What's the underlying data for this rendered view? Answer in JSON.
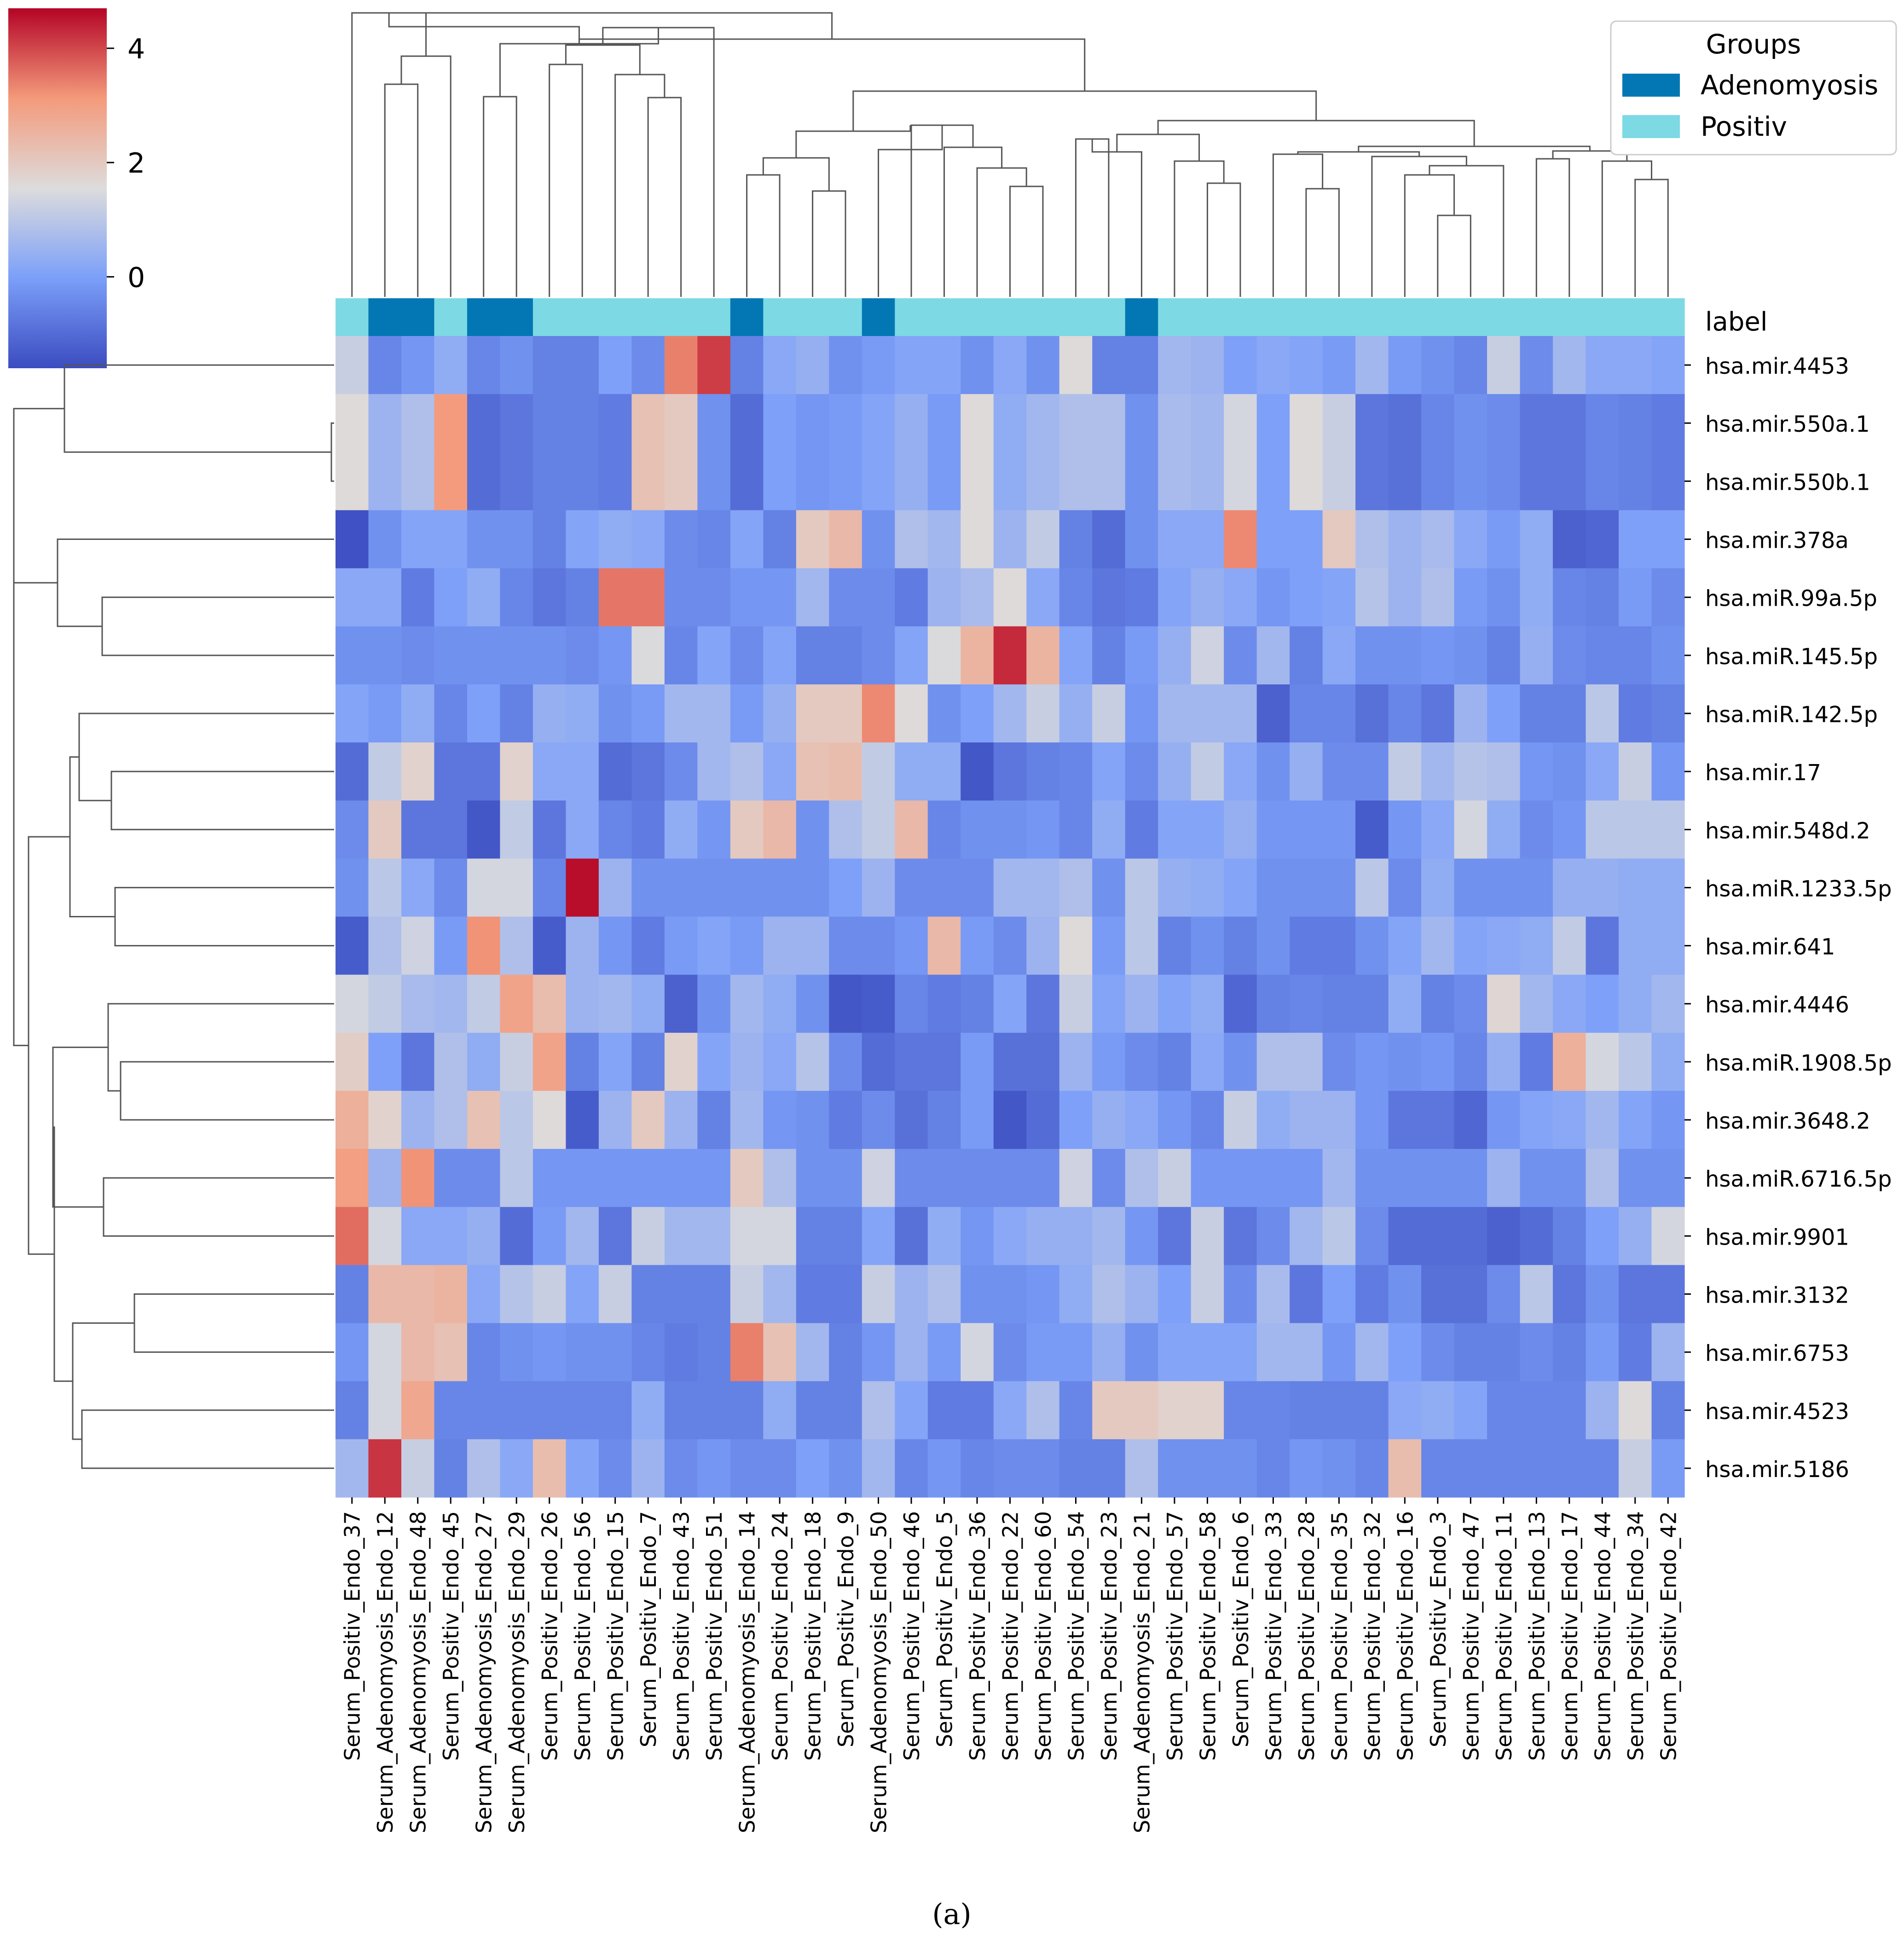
{
  "chart_data": {
    "type": "heatmap",
    "title": "",
    "caption": "(a)",
    "label_row_name": "label",
    "columns": [
      "Serum_Positiv_Endo_37",
      "Serum_Adenomyosis_Endo_12",
      "Serum_Adenomyosis_Endo_48",
      "Serum_Positiv_Endo_45",
      "Serum_Adenomyosis_Endo_27",
      "Serum_Adenomyosis_Endo_29",
      "Serum_Positiv_Endo_26",
      "Serum_Positiv_Endo_56",
      "Serum_Positiv_Endo_15",
      "Serum_Positiv_Endo_7",
      "Serum_Positiv_Endo_43",
      "Serum_Positiv_Endo_51",
      "Serum_Adenomyosis_Endo_14",
      "Serum_Positiv_Endo_24",
      "Serum_Positiv_Endo_18",
      "Serum_Positiv_Endo_9",
      "Serum_Adenomyosis_Endo_50",
      "Serum_Positiv_Endo_46",
      "Serum_Positiv_Endo_5",
      "Serum_Positiv_Endo_36",
      "Serum_Positiv_Endo_22",
      "Serum_Positiv_Endo_60",
      "Serum_Positiv_Endo_54",
      "Serum_Positiv_Endo_23",
      "Serum_Adenomyosis_Endo_21",
      "Serum_Positiv_Endo_57",
      "Serum_Positiv_Endo_58",
      "Serum_Positiv_Endo_6",
      "Serum_Positiv_Endo_33",
      "Serum_Positiv_Endo_28",
      "Serum_Positiv_Endo_35",
      "Serum_Positiv_Endo_32",
      "Serum_Positiv_Endo_16",
      "Serum_Positiv_Endo_3",
      "Serum_Positiv_Endo_47",
      "Serum_Positiv_Endo_11",
      "Serum_Positiv_Endo_13",
      "Serum_Positiv_Endo_17",
      "Serum_Positiv_Endo_44",
      "Serum_Positiv_Endo_34",
      "Serum_Positiv_Endo_42"
    ],
    "column_groups": [
      "Positiv",
      "Adenomyosis",
      "Adenomyosis",
      "Positiv",
      "Adenomyosis",
      "Adenomyosis",
      "Positiv",
      "Positiv",
      "Positiv",
      "Positiv",
      "Positiv",
      "Positiv",
      "Adenomyosis",
      "Positiv",
      "Positiv",
      "Positiv",
      "Adenomyosis",
      "Positiv",
      "Positiv",
      "Positiv",
      "Positiv",
      "Positiv",
      "Positiv",
      "Positiv",
      "Adenomyosis",
      "Positiv",
      "Positiv",
      "Positiv",
      "Positiv",
      "Positiv",
      "Positiv",
      "Positiv",
      "Positiv",
      "Positiv",
      "Positiv",
      "Positiv",
      "Positiv",
      "Positiv",
      "Positiv",
      "Positiv",
      "Positiv"
    ],
    "rows": [
      "hsa.mir.4453",
      "hsa.mir.550a.1",
      "hsa.mir.550b.1",
      "hsa.mir.378a",
      "hsa.miR.99a.5p",
      "hsa.miR.145.5p",
      "hsa.miR.142.5p",
      "hsa.mir.17",
      "hsa.mir.548d.2",
      "hsa.miR.1233.5p",
      "hsa.mir.641",
      "hsa.mir.4446",
      "hsa.miR.1908.5p",
      "hsa.mir.3648.2",
      "hsa.miR.6716.5p",
      "hsa.mir.9901",
      "hsa.mir.3132",
      "hsa.mir.6753",
      "hsa.mir.4523",
      "hsa.mir.5186"
    ],
    "values": [
      [
        1.2,
        -0.5,
        -0.2,
        0.3,
        -0.5,
        -0.3,
        -0.6,
        -0.6,
        0.0,
        -0.4,
        3.4,
        4.1,
        -0.6,
        0.2,
        0.4,
        -0.3,
        -0.1,
        0.1,
        0.1,
        -0.3,
        0.2,
        -0.3,
        1.6,
        -0.6,
        -0.6,
        0.6,
        0.5,
        0.0,
        0.2,
        0.1,
        -0.1,
        0.6,
        -0.1,
        -0.3,
        -0.5,
        1.2,
        -0.4,
        0.6,
        0.2,
        0.2,
        0.1
      ],
      [
        1.6,
        0.5,
        0.8,
        3.1,
        -1.0,
        -0.8,
        -0.6,
        -0.6,
        -0.7,
        2.2,
        2.0,
        -0.3,
        -1.0,
        0.0,
        -0.2,
        -0.1,
        0.1,
        0.4,
        -0.1,
        1.6,
        0.3,
        0.6,
        0.8,
        0.8,
        -0.3,
        0.7,
        0.6,
        1.4,
        0.0,
        1.6,
        1.2,
        -0.8,
        -0.9,
        -0.5,
        -0.3,
        -0.4,
        -0.8,
        -0.8,
        -0.5,
        -0.6,
        -0.7
      ],
      [
        1.6,
        0.5,
        0.8,
        3.1,
        -1.0,
        -0.8,
        -0.6,
        -0.6,
        -0.7,
        2.2,
        2.0,
        -0.3,
        -1.0,
        0.0,
        -0.2,
        -0.1,
        0.1,
        0.4,
        -0.1,
        1.6,
        0.3,
        0.6,
        0.8,
        0.8,
        -0.3,
        0.7,
        0.6,
        1.4,
        0.0,
        1.6,
        1.2,
        -0.8,
        -0.9,
        -0.5,
        -0.3,
        -0.4,
        -0.8,
        -0.8,
        -0.5,
        -0.6,
        -0.7
      ],
      [
        -1.5,
        -0.3,
        0.1,
        0.1,
        -0.3,
        -0.3,
        -0.6,
        0.1,
        0.3,
        0.2,
        -0.4,
        -0.5,
        0.1,
        -0.6,
        2.0,
        2.4,
        -0.3,
        0.8,
        0.6,
        1.6,
        0.5,
        1.1,
        -0.6,
        -1.0,
        -0.3,
        0.2,
        0.2,
        3.3,
        0.0,
        0.0,
        2.0,
        0.8,
        0.5,
        0.7,
        0.2,
        -0.1,
        0.3,
        -1.2,
        -1.1,
        0.0,
        0.0
      ],
      [
        0.2,
        0.2,
        -0.7,
        0.0,
        0.3,
        -0.5,
        -0.8,
        -0.6,
        3.5,
        3.5,
        -0.4,
        -0.4,
        -0.2,
        -0.2,
        0.6,
        -0.4,
        -0.4,
        -0.7,
        0.5,
        0.7,
        1.6,
        0.2,
        -0.5,
        -0.8,
        -0.7,
        0.1,
        0.4,
        0.2,
        -0.2,
        0.0,
        0.1,
        0.9,
        0.5,
        0.8,
        -0.1,
        -0.3,
        0.3,
        -0.5,
        -0.6,
        -0.1,
        -0.4
      ],
      [
        -0.3,
        -0.3,
        -0.4,
        -0.3,
        -0.3,
        -0.3,
        -0.3,
        -0.4,
        -0.2,
        1.5,
        -0.5,
        0.1,
        -0.4,
        0.1,
        -0.6,
        -0.6,
        -0.4,
        0.1,
        1.5,
        2.5,
        4.3,
        2.5,
        0.1,
        -0.6,
        -0.1,
        0.4,
        1.3,
        -0.4,
        0.6,
        -0.6,
        0.2,
        -0.3,
        -0.3,
        -0.2,
        -0.3,
        -0.6,
        0.4,
        -0.4,
        -0.5,
        -0.5,
        -0.3
      ],
      [
        0.1,
        -0.1,
        0.3,
        -0.5,
        0.0,
        -0.6,
        0.4,
        0.3,
        -0.3,
        -0.1,
        0.6,
        0.6,
        -0.1,
        0.4,
        2.0,
        2.0,
        3.3,
        1.6,
        -0.3,
        0.0,
        0.6,
        1.2,
        0.4,
        1.2,
        -0.2,
        0.6,
        0.6,
        0.6,
        -1.2,
        -0.5,
        -0.5,
        -0.9,
        -0.5,
        -0.8,
        0.5,
        0.0,
        -0.6,
        -0.6,
        1.0,
        -0.7,
        -0.6
      ],
      [
        -1.0,
        1.1,
        1.8,
        -0.8,
        -0.8,
        1.8,
        0.2,
        0.2,
        -1.0,
        -0.8,
        -0.4,
        0.6,
        0.8,
        0.2,
        2.2,
        2.3,
        1.1,
        0.3,
        0.3,
        -1.4,
        -0.8,
        -0.6,
        -0.5,
        0.1,
        -0.4,
        0.4,
        1.1,
        0.2,
        -0.3,
        0.4,
        -0.4,
        -0.4,
        1.1,
        0.6,
        0.9,
        0.8,
        -0.2,
        -0.3,
        0.2,
        1.2,
        -0.2
      ],
      [
        -0.4,
        2.0,
        -0.8,
        -0.8,
        -1.4,
        1.1,
        -0.8,
        0.2,
        -0.5,
        -0.7,
        0.3,
        -0.2,
        2.0,
        2.4,
        -0.3,
        0.8,
        1.1,
        2.4,
        -0.5,
        -0.3,
        -0.3,
        -0.2,
        -0.5,
        0.3,
        -0.7,
        0.1,
        0.1,
        0.4,
        -0.2,
        -0.2,
        -0.2,
        -1.3,
        -0.2,
        0.2,
        1.4,
        0.3,
        -0.4,
        -0.2,
        1.0,
        1.0,
        1.0
      ],
      [
        -0.3,
        1.0,
        0.2,
        -0.4,
        1.4,
        1.4,
        -0.5,
        4.6,
        0.5,
        -0.3,
        -0.3,
        -0.3,
        -0.3,
        -0.3,
        -0.3,
        0.0,
        0.5,
        -0.4,
        -0.4,
        -0.4,
        0.6,
        0.6,
        0.8,
        -0.3,
        1.0,
        0.4,
        0.3,
        0.1,
        -0.3,
        -0.3,
        -0.3,
        1.0,
        -0.4,
        0.3,
        -0.3,
        -0.3,
        -0.3,
        0.4,
        0.4,
        0.3,
        0.3
      ],
      [
        -1.3,
        0.8,
        1.3,
        -0.1,
        3.2,
        0.8,
        -1.3,
        0.5,
        -0.2,
        -0.7,
        -0.1,
        0.1,
        -0.1,
        0.5,
        0.5,
        -0.4,
        -0.4,
        -0.2,
        2.4,
        -0.1,
        -0.4,
        0.5,
        1.6,
        -0.1,
        1.0,
        -0.6,
        -0.3,
        -0.6,
        -0.3,
        -0.7,
        -0.7,
        -0.3,
        0.1,
        0.6,
        0.1,
        0.2,
        0.3,
        1.1,
        -0.8,
        0.3,
        0.3
      ],
      [
        1.4,
        1.1,
        0.7,
        0.6,
        1.1,
        2.9,
        2.3,
        0.5,
        0.6,
        0.3,
        -1.2,
        -0.3,
        0.6,
        0.3,
        -0.3,
        -1.4,
        -1.3,
        -0.5,
        -0.7,
        -0.6,
        0.1,
        -0.8,
        1.2,
        0.1,
        0.5,
        0.1,
        0.3,
        -1.1,
        -0.6,
        -0.5,
        -0.6,
        -0.6,
        0.3,
        -0.6,
        -0.4,
        1.7,
        0.6,
        0.2,
        0.0,
        0.3,
        0.6
      ],
      [
        1.9,
        0.0,
        -0.8,
        0.8,
        0.3,
        1.2,
        2.9,
        -0.6,
        0.1,
        -0.6,
        1.8,
        0.1,
        0.5,
        0.2,
        0.9,
        -0.4,
        -1.0,
        -0.8,
        -0.8,
        -0.1,
        -0.9,
        -0.9,
        0.5,
        -0.1,
        -0.4,
        -0.6,
        0.2,
        -0.3,
        0.8,
        0.8,
        -0.4,
        -0.2,
        -0.3,
        -0.2,
        -0.5,
        0.4,
        -0.7,
        2.6,
        1.4,
        1.0,
        0.3
      ],
      [
        2.6,
        1.8,
        0.5,
        0.8,
        2.2,
        1.0,
        1.6,
        -1.3,
        0.5,
        2.0,
        0.5,
        -0.6,
        0.6,
        -0.2,
        -0.3,
        -0.7,
        -0.4,
        -0.9,
        -0.6,
        -0.1,
        -1.4,
        -1.0,
        0.0,
        0.4,
        0.2,
        -0.2,
        -0.5,
        1.2,
        0.3,
        0.5,
        0.5,
        -0.2,
        -0.8,
        -0.8,
        -1.1,
        -0.2,
        0.1,
        0.2,
        0.6,
        0.1,
        -0.2
      ],
      [
        3.0,
        0.5,
        3.2,
        -0.4,
        -0.4,
        1.0,
        -0.2,
        -0.2,
        -0.2,
        -0.2,
        -0.2,
        -0.2,
        2.0,
        0.8,
        -0.3,
        -0.3,
        1.3,
        -0.4,
        -0.4,
        -0.4,
        -0.4,
        -0.4,
        1.3,
        -0.4,
        0.8,
        1.2,
        -0.2,
        -0.2,
        -0.2,
        -0.2,
        0.6,
        -0.3,
        -0.3,
        -0.3,
        -0.3,
        0.5,
        -0.3,
        -0.3,
        0.8,
        -0.3,
        -0.3
      ],
      [
        3.6,
        1.4,
        0.2,
        0.2,
        0.4,
        -1.0,
        -0.1,
        0.6,
        -0.8,
        1.2,
        0.6,
        0.6,
        1.4,
        1.4,
        -0.6,
        -0.6,
        0.1,
        -0.9,
        0.3,
        -0.2,
        0.2,
        0.4,
        0.4,
        0.6,
        -0.2,
        -0.8,
        1.2,
        -0.8,
        -0.4,
        0.6,
        1.0,
        -0.4,
        -1.0,
        -1.0,
        -1.0,
        -1.2,
        -1.0,
        -0.6,
        0.0,
        0.4,
        1.4
      ],
      [
        -0.6,
        2.4,
        2.4,
        2.5,
        0.2,
        0.9,
        1.2,
        0.1,
        1.2,
        -0.6,
        -0.6,
        -0.6,
        1.2,
        0.6,
        -0.7,
        -0.7,
        1.2,
        0.5,
        0.8,
        -0.3,
        -0.3,
        -0.2,
        0.3,
        0.8,
        0.5,
        0.0,
        1.2,
        -0.4,
        0.7,
        -0.8,
        0.0,
        -0.7,
        -0.3,
        -0.9,
        -0.9,
        -0.4,
        1.0,
        -0.8,
        -0.3,
        -0.8,
        -0.8
      ],
      [
        -0.2,
        1.4,
        2.4,
        2.2,
        -0.5,
        -0.3,
        -0.2,
        -0.3,
        -0.3,
        -0.5,
        -0.7,
        -0.6,
        3.4,
        2.2,
        0.6,
        -0.6,
        -0.2,
        0.5,
        -0.1,
        1.4,
        -0.4,
        -0.1,
        -0.1,
        0.4,
        -0.3,
        0.1,
        0.1,
        0.1,
        0.6,
        0.6,
        -0.2,
        0.6,
        0.0,
        -0.4,
        -0.6,
        -0.6,
        -0.4,
        -0.6,
        -0.1,
        -0.7,
        0.5
      ],
      [
        -0.6,
        1.4,
        2.8,
        -0.5,
        -0.5,
        -0.5,
        -0.5,
        -0.5,
        -0.5,
        0.3,
        -0.6,
        -0.6,
        -0.6,
        0.3,
        -0.6,
        -0.6,
        0.8,
        0.1,
        -0.7,
        -0.7,
        0.2,
        0.8,
        -0.5,
        2.0,
        2.0,
        1.8,
        1.8,
        -0.5,
        -0.5,
        -0.6,
        -0.6,
        -0.6,
        0.2,
        0.3,
        0.1,
        -0.5,
        -0.5,
        -0.5,
        0.5,
        1.6,
        -0.6
      ],
      [
        0.6,
        4.2,
        1.2,
        -0.6,
        0.8,
        0.2,
        2.3,
        0.1,
        -0.4,
        0.5,
        -0.4,
        -0.2,
        -0.4,
        -0.4,
        0.0,
        -0.3,
        0.6,
        -0.5,
        -0.2,
        -0.5,
        -0.4,
        -0.4,
        -0.6,
        -0.6,
        0.8,
        -0.3,
        -0.3,
        -0.3,
        -0.5,
        -0.2,
        -0.3,
        -0.5,
        2.3,
        -0.5,
        -0.5,
        -0.5,
        -0.5,
        -0.5,
        -0.5,
        1.2,
        -0.1
      ]
    ],
    "vmin": -1.6,
    "vmax": 4.7,
    "colorbar_ticks": [
      "4",
      "2",
      "0"
    ],
    "colormap": "coolwarm",
    "legend": {
      "title": "Groups",
      "placement": "top-right",
      "entries": [
        {
          "label": "Adenomyosis",
          "color": "#0277b4"
        },
        {
          "label": "Positiv",
          "color": "#7dd9e4"
        }
      ]
    },
    "dendrogram_color": "#555555"
  }
}
